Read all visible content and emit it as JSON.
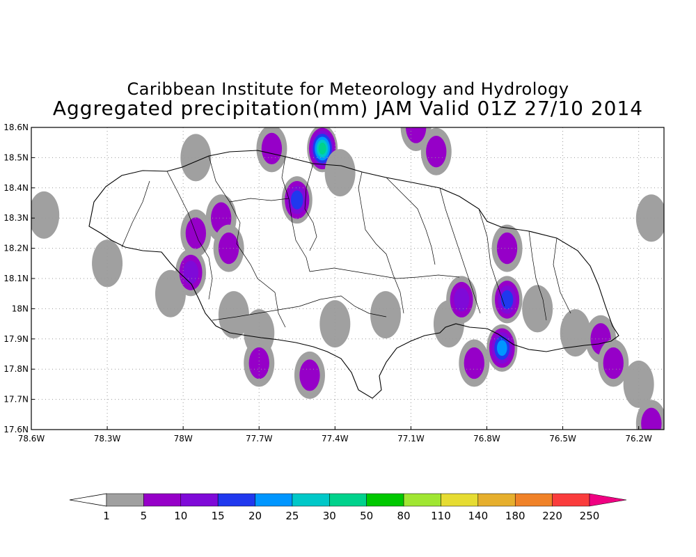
{
  "title": {
    "line1": "Caribbean Institute for Meteorology and Hydrology",
    "line2": "Aggregated precipitation(mm) JAM Valid 01Z 27/10 2014"
  },
  "map": {
    "lon_range": [
      -78.6,
      -76.1
    ],
    "lat_range": [
      17.6,
      18.6
    ],
    "gridlines": "dotted",
    "x_ticks": [
      {
        "value": -78.6,
        "label": "78.6W"
      },
      {
        "value": -78.3,
        "label": "78.3W"
      },
      {
        "value": -78.0,
        "label": "78W"
      },
      {
        "value": -77.7,
        "label": "77.7W"
      },
      {
        "value": -77.4,
        "label": "77.4W"
      },
      {
        "value": -77.1,
        "label": "77.1W"
      },
      {
        "value": -76.8,
        "label": "76.8W"
      },
      {
        "value": -76.5,
        "label": "76.5W"
      },
      {
        "value": -76.2,
        "label": "76.2W"
      }
    ],
    "y_ticks": [
      {
        "value": 18.6,
        "label": "18.6N"
      },
      {
        "value": 18.5,
        "label": "18.5N"
      },
      {
        "value": 18.4,
        "label": "18.4N"
      },
      {
        "value": 18.3,
        "label": "18.3N"
      },
      {
        "value": 18.2,
        "label": "18.2N"
      },
      {
        "value": 18.1,
        "label": "18.1N"
      },
      {
        "value": 18.0,
        "label": "18N"
      },
      {
        "value": 17.9,
        "label": "17.9N"
      },
      {
        "value": 17.8,
        "label": "17.8N"
      },
      {
        "value": 17.7,
        "label": "17.7N"
      },
      {
        "value": 17.6,
        "label": "17.6N"
      }
    ],
    "precip_cells": [
      {
        "lon": -78.55,
        "lat": 18.31,
        "mm": 3
      },
      {
        "lon": -78.3,
        "lat": 18.15,
        "mm": 2
      },
      {
        "lon": -78.05,
        "lat": 18.05,
        "mm": 3
      },
      {
        "lon": -77.95,
        "lat": 18.5,
        "mm": 4
      },
      {
        "lon": -77.95,
        "lat": 18.25,
        "mm": 9
      },
      {
        "lon": -77.97,
        "lat": 18.12,
        "mm": 12
      },
      {
        "lon": -77.85,
        "lat": 18.3,
        "mm": 8
      },
      {
        "lon": -77.82,
        "lat": 18.2,
        "mm": 7
      },
      {
        "lon": -77.65,
        "lat": 18.53,
        "mm": 8
      },
      {
        "lon": -77.55,
        "lat": 18.36,
        "mm": 18
      },
      {
        "lon": -77.45,
        "lat": 18.53,
        "mm": 30
      },
      {
        "lon": -77.38,
        "lat": 18.45,
        "mm": 4
      },
      {
        "lon": -77.8,
        "lat": 17.98,
        "mm": 3
      },
      {
        "lon": -77.7,
        "lat": 17.92,
        "mm": 3
      },
      {
        "lon": -77.7,
        "lat": 17.82,
        "mm": 6
      },
      {
        "lon": -77.5,
        "lat": 17.78,
        "mm": 8
      },
      {
        "lon": -77.4,
        "lat": 17.95,
        "mm": 2
      },
      {
        "lon": -77.2,
        "lat": 17.98,
        "mm": 3
      },
      {
        "lon": -77.08,
        "lat": 18.6,
        "mm": 6
      },
      {
        "lon": -77.0,
        "lat": 18.52,
        "mm": 7
      },
      {
        "lon": -76.95,
        "lat": 17.95,
        "mm": 3
      },
      {
        "lon": -76.9,
        "lat": 18.03,
        "mm": 10
      },
      {
        "lon": -76.85,
        "lat": 17.82,
        "mm": 9
      },
      {
        "lon": -76.72,
        "lat": 18.03,
        "mm": 18
      },
      {
        "lon": -76.72,
        "lat": 18.2,
        "mm": 8
      },
      {
        "lon": -76.74,
        "lat": 17.87,
        "mm": 24
      },
      {
        "lon": -76.6,
        "lat": 18.0,
        "mm": 3
      },
      {
        "lon": -76.45,
        "lat": 17.92,
        "mm": 3
      },
      {
        "lon": -76.35,
        "lat": 17.9,
        "mm": 7
      },
      {
        "lon": -76.3,
        "lat": 17.82,
        "mm": 8
      },
      {
        "lon": -76.15,
        "lat": 18.3,
        "mm": 2
      },
      {
        "lon": -76.15,
        "lat": 17.62,
        "mm": 7
      },
      {
        "lon": -76.2,
        "lat": 17.75,
        "mm": 3
      }
    ]
  },
  "colorbar": {
    "labels": [
      "1",
      "5",
      "10",
      "15",
      "20",
      "25",
      "30",
      "50",
      "80",
      "110",
      "140",
      "180",
      "220",
      "250"
    ],
    "colors": [
      "#a0a0a0",
      "#9600c8",
      "#7f0ad8",
      "#2038ee",
      "#0096ff",
      "#00c8c8",
      "#00d28c",
      "#00c800",
      "#a0e632",
      "#e6dc32",
      "#e6af2d",
      "#f08228",
      "#fa3c3c",
      "#f00082"
    ]
  }
}
